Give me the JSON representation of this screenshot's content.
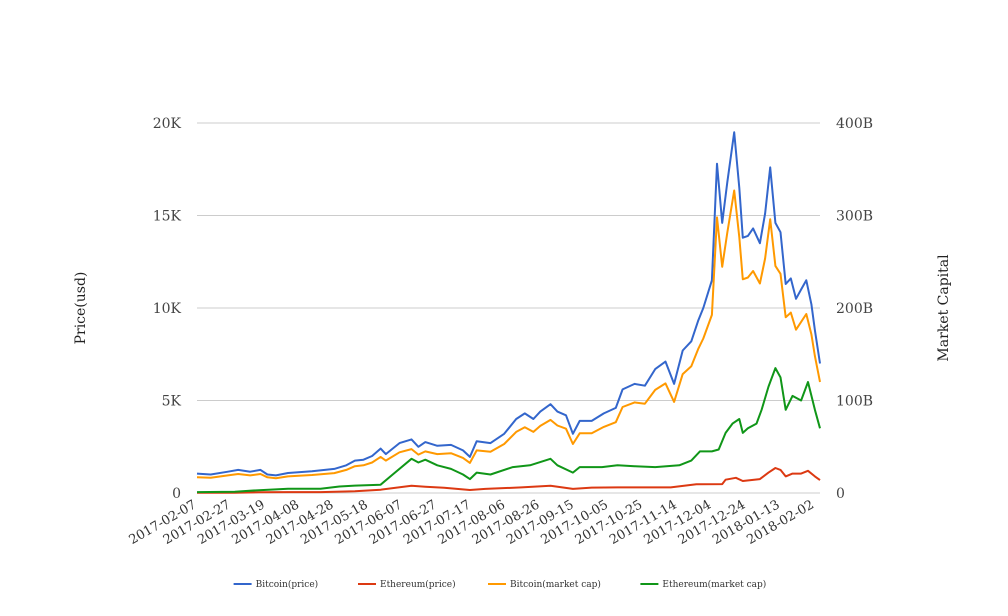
{
  "chart_data": {
    "type": "line",
    "title": "",
    "ylabel_left": "Price(usd)",
    "ylabel_right": "Market Capital",
    "ylim_left": [
      0,
      20000
    ],
    "ylim_right": [
      0,
      400000000000
    ],
    "yticks_left": [
      "0",
      "5K",
      "10K",
      "15K",
      "20K"
    ],
    "yticks_right": [
      "0",
      "100B",
      "200B",
      "300B",
      "400B"
    ],
    "xlim": [
      "2017-02-07",
      "2018-02-05"
    ],
    "xticks": [
      "2017-02-07",
      "2017-02-27",
      "2017-03-19",
      "2017-04-08",
      "2017-04-28",
      "2017-05-18",
      "2017-06-07",
      "2017-06-27",
      "2017-07-17",
      "2017-08-06",
      "2017-08-26",
      "2017-09-15",
      "2017-10-05",
      "2017-10-25",
      "2017-11-14",
      "2017-12-04",
      "2017-12-24",
      "2018-01-13",
      "2018-02-02"
    ],
    "grid": true,
    "legend_position": "bottom",
    "series": [
      {
        "name": "Bitcoin(price)",
        "axis": "left",
        "color": "#3366cc",
        "points": [
          [
            "2017-02-07",
            1050
          ],
          [
            "2017-02-15",
            1000
          ],
          [
            "2017-02-25",
            1150
          ],
          [
            "2017-03-03",
            1250
          ],
          [
            "2017-03-10",
            1150
          ],
          [
            "2017-03-16",
            1250
          ],
          [
            "2017-03-20",
            1000
          ],
          [
            "2017-03-25",
            950
          ],
          [
            "2017-04-01",
            1080
          ],
          [
            "2017-04-15",
            1180
          ],
          [
            "2017-04-28",
            1300
          ],
          [
            "2017-05-05",
            1500
          ],
          [
            "2017-05-10",
            1750
          ],
          [
            "2017-05-15",
            1800
          ],
          [
            "2017-05-20",
            2000
          ],
          [
            "2017-05-25",
            2400
          ],
          [
            "2017-05-28",
            2100
          ],
          [
            "2017-06-05",
            2700
          ],
          [
            "2017-06-12",
            2900
          ],
          [
            "2017-06-16",
            2500
          ],
          [
            "2017-06-20",
            2750
          ],
          [
            "2017-06-27",
            2550
          ],
          [
            "2017-07-05",
            2600
          ],
          [
            "2017-07-12",
            2300
          ],
          [
            "2017-07-16",
            1950
          ],
          [
            "2017-07-20",
            2800
          ],
          [
            "2017-07-28",
            2700
          ],
          [
            "2017-08-05",
            3200
          ],
          [
            "2017-08-12",
            4000
          ],
          [
            "2017-08-17",
            4300
          ],
          [
            "2017-08-22",
            4000
          ],
          [
            "2017-08-26",
            4400
          ],
          [
            "2017-09-01",
            4800
          ],
          [
            "2017-09-05",
            4400
          ],
          [
            "2017-09-10",
            4200
          ],
          [
            "2017-09-14",
            3200
          ],
          [
            "2017-09-18",
            3900
          ],
          [
            "2017-09-25",
            3900
          ],
          [
            "2017-10-02",
            4300
          ],
          [
            "2017-10-09",
            4600
          ],
          [
            "2017-10-13",
            5600
          ],
          [
            "2017-10-20",
            5900
          ],
          [
            "2017-10-26",
            5800
          ],
          [
            "2017-11-01",
            6700
          ],
          [
            "2017-11-07",
            7100
          ],
          [
            "2017-11-12",
            5900
          ],
          [
            "2017-11-17",
            7700
          ],
          [
            "2017-11-22",
            8200
          ],
          [
            "2017-11-26",
            9300
          ],
          [
            "2017-11-29",
            10000
          ],
          [
            "2017-12-04",
            11500
          ],
          [
            "2017-12-07",
            17800
          ],
          [
            "2017-12-10",
            14600
          ],
          [
            "2017-12-13",
            16800
          ],
          [
            "2017-12-17",
            19500
          ],
          [
            "2017-12-20",
            16500
          ],
          [
            "2017-12-22",
            13800
          ],
          [
            "2017-12-25",
            13900
          ],
          [
            "2017-12-28",
            14300
          ],
          [
            "2018-01-01",
            13500
          ],
          [
            "2018-01-04",
            15100
          ],
          [
            "2018-01-07",
            17600
          ],
          [
            "2018-01-10",
            14600
          ],
          [
            "2018-01-13",
            14100
          ],
          [
            "2018-01-16",
            11300
          ],
          [
            "2018-01-19",
            11600
          ],
          [
            "2018-01-22",
            10500
          ],
          [
            "2018-01-25",
            11000
          ],
          [
            "2018-01-28",
            11500
          ],
          [
            "2018-01-31",
            10200
          ],
          [
            "2018-02-02",
            8800
          ],
          [
            "2018-02-05",
            7000
          ]
        ]
      },
      {
        "name": "Ethereum(price)",
        "axis": "left",
        "color": "#dc3912",
        "points": [
          [
            "2017-02-07",
            11
          ],
          [
            "2017-03-01",
            16
          ],
          [
            "2017-03-15",
            40
          ],
          [
            "2017-04-01",
            50
          ],
          [
            "2017-04-20",
            50
          ],
          [
            "2017-05-10",
            90
          ],
          [
            "2017-05-25",
            180
          ],
          [
            "2017-06-12",
            390
          ],
          [
            "2017-06-20",
            340
          ],
          [
            "2017-07-01",
            280
          ],
          [
            "2017-07-16",
            160
          ],
          [
            "2017-07-25",
            220
          ],
          [
            "2017-08-15",
            300
          ],
          [
            "2017-09-01",
            390
          ],
          [
            "2017-09-14",
            220
          ],
          [
            "2017-09-25",
            290
          ],
          [
            "2017-10-10",
            300
          ],
          [
            "2017-10-25",
            300
          ],
          [
            "2017-11-10",
            300
          ],
          [
            "2017-11-25",
            470
          ],
          [
            "2017-12-10",
            480
          ],
          [
            "2017-12-12",
            720
          ],
          [
            "2017-12-18",
            820
          ],
          [
            "2017-12-22",
            650
          ],
          [
            "2018-01-01",
            750
          ],
          [
            "2018-01-06",
            1100
          ],
          [
            "2018-01-10",
            1350
          ],
          [
            "2018-01-13",
            1250
          ],
          [
            "2018-01-16",
            900
          ],
          [
            "2018-01-20",
            1050
          ],
          [
            "2018-01-25",
            1050
          ],
          [
            "2018-01-29",
            1200
          ],
          [
            "2018-02-02",
            900
          ],
          [
            "2018-02-05",
            700
          ]
        ]
      },
      {
        "name": "Bitcoin(market cap)",
        "axis": "right",
        "color": "#ff9900",
        "points": [
          [
            "2017-02-07",
            17000000000
          ],
          [
            "2017-02-15",
            16500000000
          ],
          [
            "2017-02-25",
            19000000000
          ],
          [
            "2017-03-03",
            20500000000
          ],
          [
            "2017-03-10",
            19000000000
          ],
          [
            "2017-03-16",
            20500000000
          ],
          [
            "2017-03-20",
            17000000000
          ],
          [
            "2017-03-25",
            16000000000
          ],
          [
            "2017-04-01",
            18000000000
          ],
          [
            "2017-04-15",
            19500000000
          ],
          [
            "2017-04-28",
            21500000000
          ],
          [
            "2017-05-05",
            25000000000
          ],
          [
            "2017-05-10",
            29000000000
          ],
          [
            "2017-05-15",
            30000000000
          ],
          [
            "2017-05-20",
            33000000000
          ],
          [
            "2017-05-25",
            39000000000
          ],
          [
            "2017-05-28",
            35000000000
          ],
          [
            "2017-06-05",
            44000000000
          ],
          [
            "2017-06-12",
            47500000000
          ],
          [
            "2017-06-16",
            41500000000
          ],
          [
            "2017-06-20",
            45000000000
          ],
          [
            "2017-06-27",
            42000000000
          ],
          [
            "2017-07-05",
            43000000000
          ],
          [
            "2017-07-12",
            38000000000
          ],
          [
            "2017-07-16",
            32500000000
          ],
          [
            "2017-07-20",
            46000000000
          ],
          [
            "2017-07-28",
            44500000000
          ],
          [
            "2017-08-05",
            53000000000
          ],
          [
            "2017-08-12",
            66000000000
          ],
          [
            "2017-08-17",
            71000000000
          ],
          [
            "2017-08-22",
            66000000000
          ],
          [
            "2017-08-26",
            72500000000
          ],
          [
            "2017-09-01",
            79000000000
          ],
          [
            "2017-09-05",
            73000000000
          ],
          [
            "2017-09-10",
            69500000000
          ],
          [
            "2017-09-14",
            53000000000
          ],
          [
            "2017-09-18",
            64500000000
          ],
          [
            "2017-09-25",
            64500000000
          ],
          [
            "2017-10-02",
            71500000000
          ],
          [
            "2017-10-09",
            76500000000
          ],
          [
            "2017-10-13",
            93000000000
          ],
          [
            "2017-10-20",
            98000000000
          ],
          [
            "2017-10-26",
            96500000000
          ],
          [
            "2017-11-01",
            111500000000
          ],
          [
            "2017-11-07",
            118500000000
          ],
          [
            "2017-11-12",
            98500000000
          ],
          [
            "2017-11-17",
            128500000000
          ],
          [
            "2017-11-22",
            137000000000
          ],
          [
            "2017-11-26",
            155500000000
          ],
          [
            "2017-11-29",
            167000000000
          ],
          [
            "2017-12-04",
            192500000000
          ],
          [
            "2017-12-07",
            298000000000
          ],
          [
            "2017-12-10",
            244500000000
          ],
          [
            "2017-12-13",
            281500000000
          ],
          [
            "2017-12-17",
            327000000000
          ],
          [
            "2017-12-20",
            276500000000
          ],
          [
            "2017-12-22",
            231000000000
          ],
          [
            "2017-12-25",
            233000000000
          ],
          [
            "2017-12-28",
            240000000000
          ],
          [
            "2018-01-01",
            226500000000
          ],
          [
            "2018-01-04",
            253500000000
          ],
          [
            "2018-01-07",
            296000000000
          ],
          [
            "2018-01-10",
            245500000000
          ],
          [
            "2018-01-13",
            237000000000
          ],
          [
            "2018-01-16",
            190000000000
          ],
          [
            "2018-01-19",
            195000000000
          ],
          [
            "2018-01-22",
            176500000000
          ],
          [
            "2018-01-25",
            185000000000
          ],
          [
            "2018-01-28",
            193500000000
          ],
          [
            "2018-01-31",
            171500000000
          ],
          [
            "2018-02-02",
            148000000000
          ],
          [
            "2018-02-05",
            120000000000
          ]
        ]
      },
      {
        "name": "Ethereum(market cap)",
        "axis": "right",
        "color": "#109618",
        "points": [
          [
            "2017-02-07",
            1000000000
          ],
          [
            "2017-03-01",
            1400000000
          ],
          [
            "2017-03-15",
            3000000000
          ],
          [
            "2017-04-01",
            4500000000
          ],
          [
            "2017-04-20",
            4500000000
          ],
          [
            "2017-05-01",
            7000000000
          ],
          [
            "2017-05-10",
            8000000000
          ],
          [
            "2017-05-25",
            9000000000
          ],
          [
            "2017-06-01",
            20000000000
          ],
          [
            "2017-06-12",
            37000000000
          ],
          [
            "2017-06-16",
            33000000000
          ],
          [
            "2017-06-20",
            36000000000
          ],
          [
            "2017-06-27",
            30000000000
          ],
          [
            "2017-07-05",
            26000000000
          ],
          [
            "2017-07-12",
            20000000000
          ],
          [
            "2017-07-16",
            15000000000
          ],
          [
            "2017-07-20",
            22000000000
          ],
          [
            "2017-07-28",
            20000000000
          ],
          [
            "2017-08-10",
            28000000000
          ],
          [
            "2017-08-20",
            30000000000
          ],
          [
            "2017-09-01",
            37000000000
          ],
          [
            "2017-09-05",
            30000000000
          ],
          [
            "2017-09-14",
            22000000000
          ],
          [
            "2017-09-18",
            28000000000
          ],
          [
            "2017-10-01",
            28000000000
          ],
          [
            "2017-10-10",
            30000000000
          ],
          [
            "2017-10-20",
            29000000000
          ],
          [
            "2017-11-01",
            28000000000
          ],
          [
            "2017-11-15",
            30000000000
          ],
          [
            "2017-11-22",
            35000000000
          ],
          [
            "2017-11-27",
            45000000000
          ],
          [
            "2017-12-04",
            45000000000
          ],
          [
            "2017-12-08",
            47000000000
          ],
          [
            "2017-12-12",
            65000000000
          ],
          [
            "2017-12-16",
            75000000000
          ],
          [
            "2017-12-20",
            80000000000
          ],
          [
            "2017-12-22",
            65000000000
          ],
          [
            "2017-12-25",
            70000000000
          ],
          [
            "2017-12-30",
            75000000000
          ],
          [
            "2018-01-02",
            90000000000
          ],
          [
            "2018-01-06",
            115000000000
          ],
          [
            "2018-01-10",
            135000000000
          ],
          [
            "2018-01-13",
            125000000000
          ],
          [
            "2018-01-16",
            90000000000
          ],
          [
            "2018-01-20",
            105000000000
          ],
          [
            "2018-01-25",
            100000000000
          ],
          [
            "2018-01-29",
            120000000000
          ],
          [
            "2018-02-02",
            90000000000
          ],
          [
            "2018-02-05",
            70000000000
          ]
        ]
      }
    ]
  }
}
